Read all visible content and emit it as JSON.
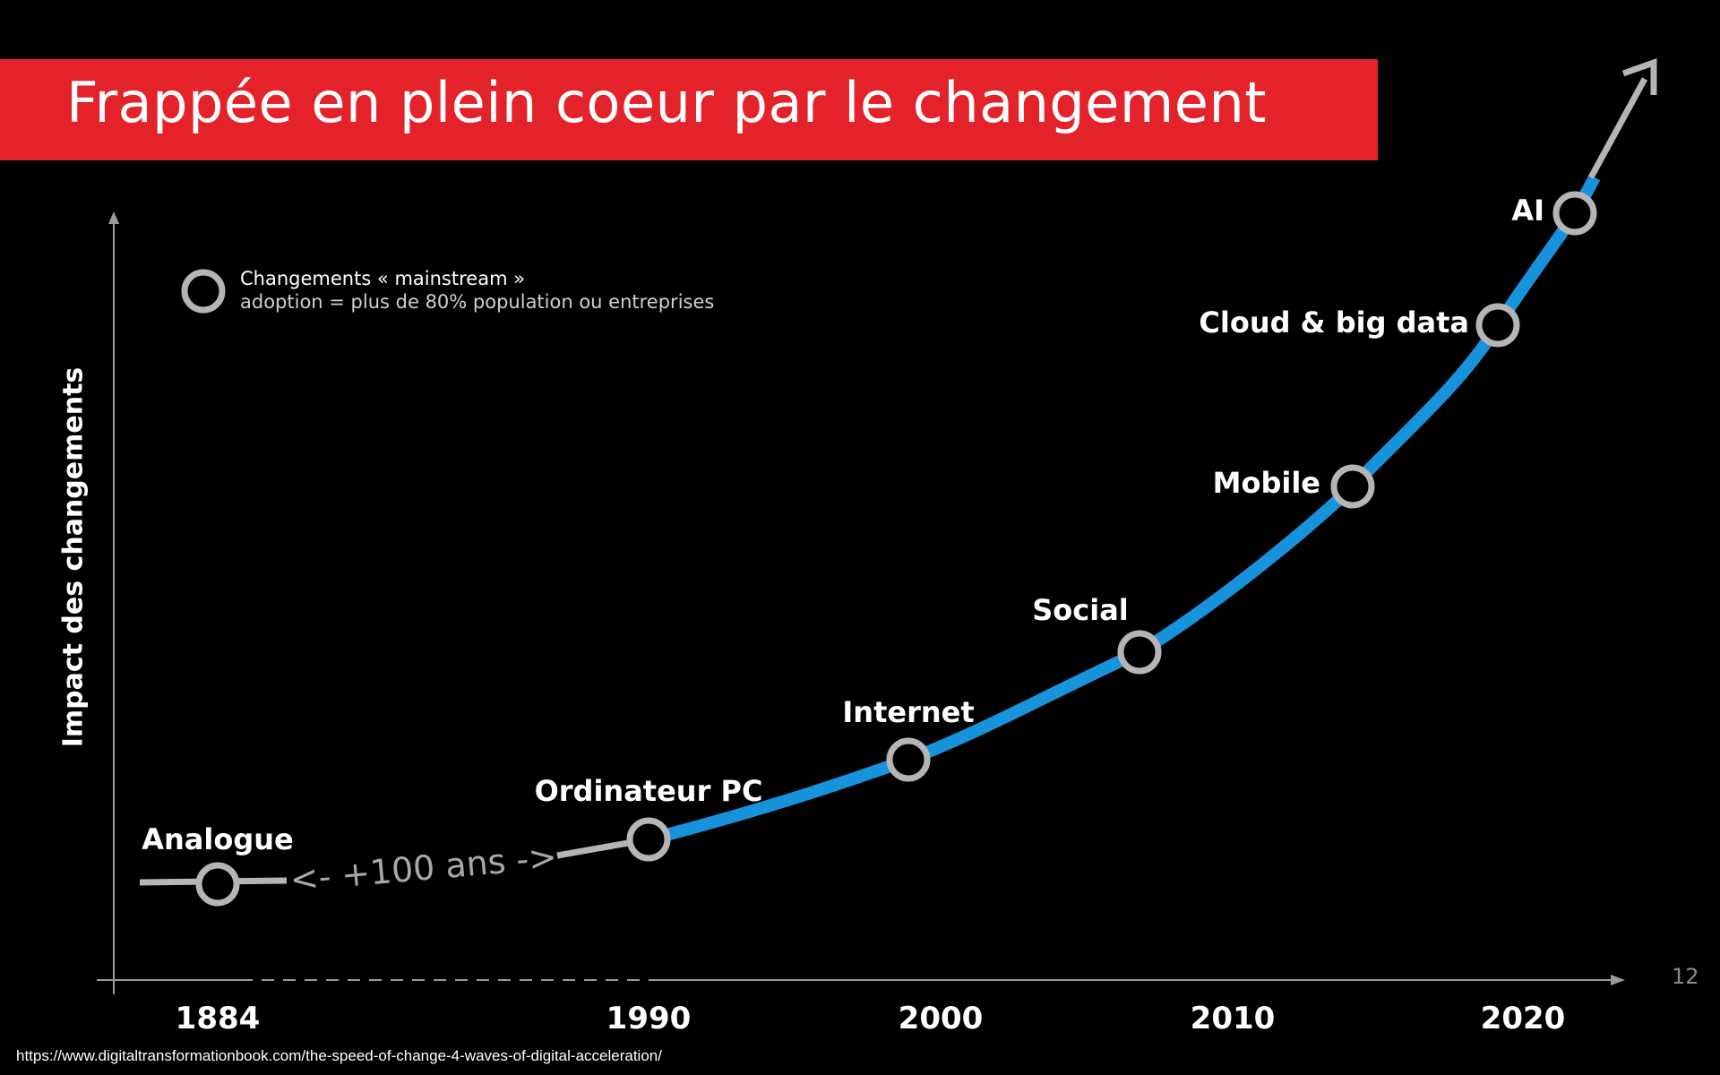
{
  "slide": {
    "title": "Frappée en plein coeur par le changement",
    "y_axis_label": "Impact des changements",
    "legend": {
      "title": "Changements « mainstream »",
      "description": "adoption = plus de 80% population ou entreprises"
    },
    "gap_label": "<- +100 ans ->",
    "page_number": "12",
    "source": "https://www.digitaltransformationbook.com/the-speed-of-change-4-waves-of-digital-acceleration/"
  },
  "colors": {
    "banner": "#e4222a",
    "curve": "#1793dc",
    "grey_segment": "#b5b5b5",
    "milestone_ring": "#b5b5b5",
    "axis": "#9a9a9a",
    "background": "#000000"
  },
  "chart_data": {
    "type": "line",
    "x_ticks": [
      "1884",
      "1990",
      "2000",
      "2010",
      "2020"
    ],
    "milestones": [
      {
        "label": "Analogue",
        "year": 1884
      },
      {
        "label": "Ordinateur PC",
        "year": 1990
      },
      {
        "label": "Internet",
        "year": 1999
      },
      {
        "label": "Social",
        "year": 2007
      },
      {
        "label": "Mobile",
        "year": 2014
      },
      {
        "label": "Cloud & big data",
        "year": 2019
      },
      {
        "label": "AI",
        "year": 2022
      }
    ]
  }
}
